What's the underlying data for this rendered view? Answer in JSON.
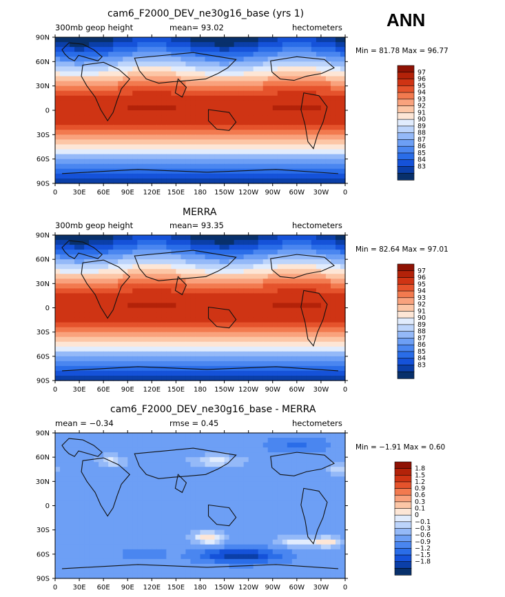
{
  "season": "ANN",
  "colors": {
    "scale": [
      "#08306b",
      "#0b3fa8",
      "#1552d9",
      "#2a6de8",
      "#4a86f0",
      "#6d9ff5",
      "#94b9f8",
      "#bcd4fb",
      "#e1ecfd",
      "#fde6d6",
      "#fcc6a6",
      "#f9a27d",
      "#f27a4f",
      "#e5532c",
      "#cf3414",
      "#b32209",
      "#8f1204"
    ],
    "coast": "#111111"
  },
  "chart_data": [
    {
      "type": "heatmap",
      "title": "cam6_F2000_DEV_ne30g16_base (yrs 1)",
      "left_label": "300mb geop height",
      "center_label": "mean=   93.02",
      "right_label": "hectometers",
      "minmax": "Min =   81.78  Max =   96.77",
      "x_ticks": [
        "0",
        "30E",
        "60E",
        "90E",
        "120E",
        "150E",
        "180",
        "150W",
        "120W",
        "90W",
        "60W",
        "30W",
        "0"
      ],
      "y_ticks": [
        "90N",
        "60N",
        "30N",
        "0",
        "30S",
        "60S",
        "90S"
      ],
      "colorbar": [
        "97",
        "96",
        "95",
        "94",
        "93",
        "92",
        "91",
        "90",
        "89",
        "88",
        "87",
        "86",
        "85",
        "84",
        "83"
      ],
      "field": {
        "kind": "abs",
        "min": 81.78,
        "max": 96.77,
        "mean": 93.02
      }
    },
    {
      "type": "heatmap",
      "title": "MERRA",
      "left_label": "300mb geop height",
      "center_label": "mean=   93.35",
      "right_label": "hectometers",
      "minmax": "Min =   82.64  Max =   97.01",
      "x_ticks": [
        "0",
        "30E",
        "60E",
        "90E",
        "120E",
        "150E",
        "180",
        "150W",
        "120W",
        "90W",
        "60W",
        "30W",
        "0"
      ],
      "y_ticks": [
        "90N",
        "60N",
        "30N",
        "0",
        "30S",
        "60S",
        "90S"
      ],
      "colorbar": [
        "97",
        "96",
        "95",
        "94",
        "93",
        "92",
        "91",
        "90",
        "89",
        "88",
        "87",
        "86",
        "85",
        "84",
        "83"
      ],
      "field": {
        "kind": "abs",
        "min": 82.64,
        "max": 97.01,
        "mean": 93.35
      }
    },
    {
      "type": "heatmap",
      "title": "cam6_F2000_DEV_ne30g16_base - MERRA",
      "left_label": "mean =   −0.34",
      "center_label": "rmse =     0.45",
      "right_label": "hectometers",
      "minmax": "Min =   −1.91  Max =    0.60",
      "x_ticks": [
        "0",
        "30E",
        "60E",
        "90E",
        "120E",
        "150E",
        "180",
        "150W",
        "120W",
        "90W",
        "60W",
        "30W",
        "0"
      ],
      "y_ticks": [
        "90N",
        "60N",
        "30N",
        "0",
        "30S",
        "60S",
        "90S"
      ],
      "colorbar": [
        "1.8",
        "1.5",
        "1.2",
        "0.9",
        "0.6",
        "0.3",
        "0.1",
        "0",
        "−0.1",
        "−0.3",
        "−0.6",
        "−0.9",
        "−1.2",
        "−1.5",
        "−1.8"
      ],
      "field": {
        "kind": "diff",
        "min": -1.91,
        "max": 0.6,
        "mean": -0.34,
        "rmse": 0.45
      }
    }
  ]
}
